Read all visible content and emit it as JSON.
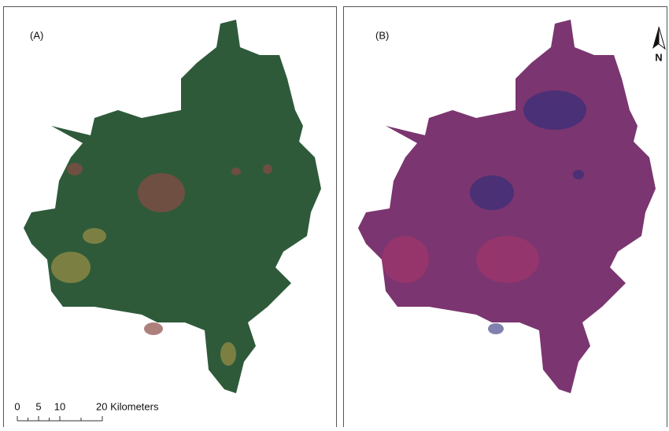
{
  "panels": [
    {
      "label": "(A)"
    },
    {
      "label": "(B)"
    }
  ],
  "north_arrow": {
    "label": "N"
  },
  "scale_bar": {
    "labels": [
      "0",
      "5",
      "10",
      "20 Kilometers"
    ]
  }
}
